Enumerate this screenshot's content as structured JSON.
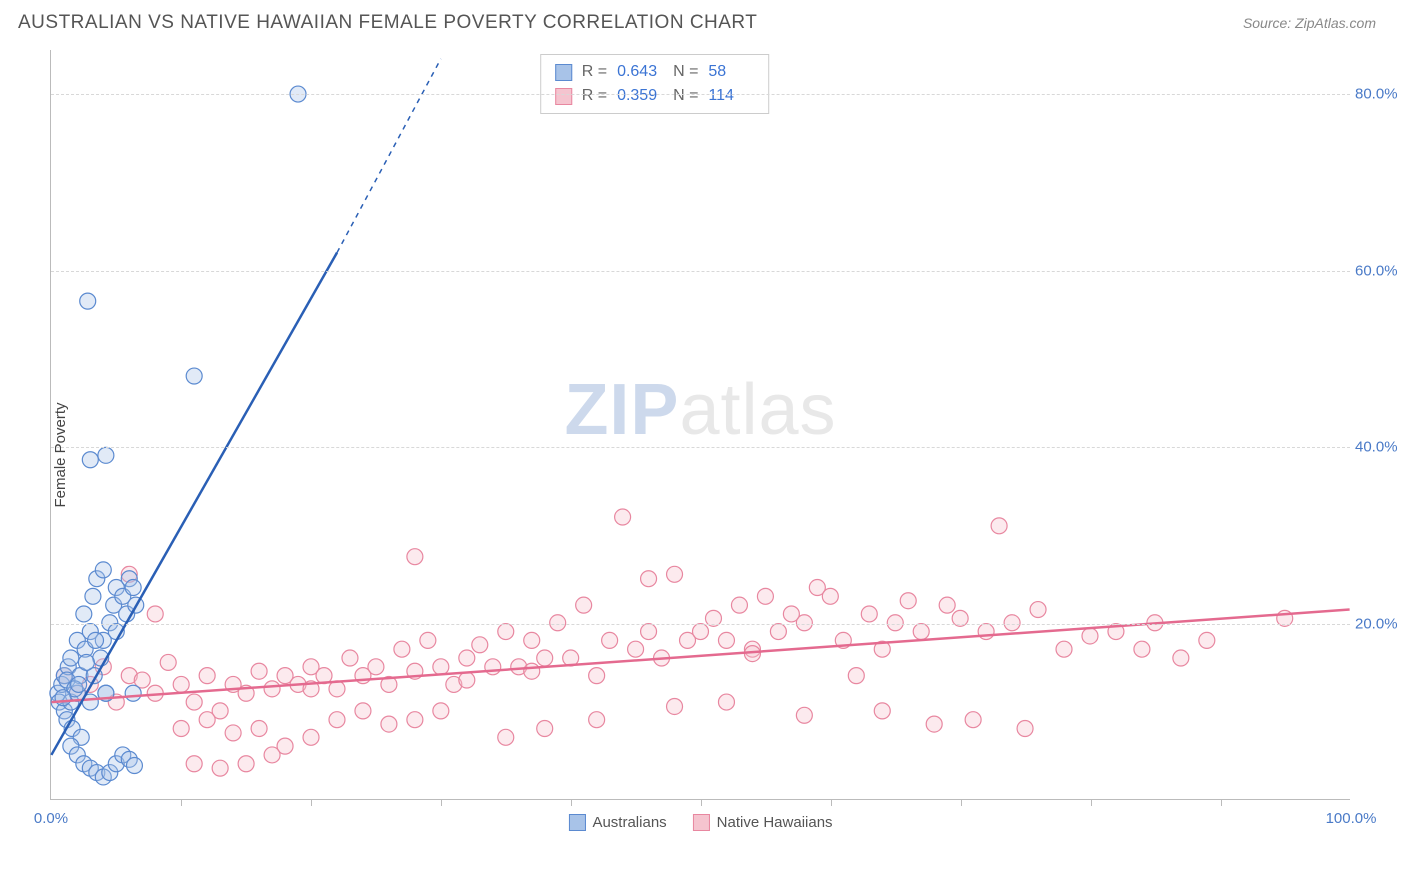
{
  "header": {
    "title": "AUSTRALIAN VS NATIVE HAWAIIAN FEMALE POVERTY CORRELATION CHART",
    "source_prefix": "Source: ",
    "source_name": "ZipAtlas.com"
  },
  "chart": {
    "type": "scatter",
    "ylabel": "Female Poverty",
    "watermark_a": "ZIP",
    "watermark_b": "atlas",
    "xlim": [
      0,
      100
    ],
    "ylim": [
      0,
      85
    ],
    "yticks": [
      {
        "v": 20,
        "label": "20.0%"
      },
      {
        "v": 40,
        "label": "40.0%"
      },
      {
        "v": 60,
        "label": "60.0%"
      },
      {
        "v": 80,
        "label": "80.0%"
      }
    ],
    "xticks_major": [
      {
        "v": 0,
        "label": "0.0%"
      },
      {
        "v": 100,
        "label": "100.0%"
      }
    ],
    "xticks_minor": [
      10,
      20,
      30,
      40,
      50,
      60,
      70,
      80,
      90
    ],
    "grid_color": "#d8d8d8",
    "axis_color": "#bbbbbb",
    "label_color": "#4a7ac7",
    "marker_radius": 8,
    "marker_opacity": 0.35,
    "series": [
      {
        "key": "australians",
        "label": "Australians",
        "color_fill": "#a8c3e8",
        "color_stroke": "#5b8ad0",
        "line_color": "#2a5fb5",
        "R": "0.643",
        "N": "58",
        "regression": {
          "x1": 0,
          "y1": 5,
          "x2": 22,
          "y2": 62,
          "dash_from_x": 22,
          "dash_to_x": 30,
          "dash_to_y": 84
        },
        "points": [
          [
            0.5,
            12
          ],
          [
            0.6,
            11
          ],
          [
            0.8,
            13
          ],
          [
            1,
            14
          ],
          [
            1,
            10
          ],
          [
            1.2,
            9
          ],
          [
            1.3,
            15
          ],
          [
            1.5,
            16
          ],
          [
            1.5,
            11
          ],
          [
            1.6,
            8
          ],
          [
            2,
            12
          ],
          [
            2,
            18
          ],
          [
            2.2,
            14
          ],
          [
            2.3,
            7
          ],
          [
            2.5,
            21
          ],
          [
            2.6,
            17
          ],
          [
            3,
            19
          ],
          [
            3,
            11
          ],
          [
            3.2,
            23
          ],
          [
            3.3,
            14
          ],
          [
            3.5,
            25
          ],
          [
            3.8,
            16
          ],
          [
            4,
            18
          ],
          [
            4,
            26
          ],
          [
            4.2,
            12
          ],
          [
            4.5,
            20
          ],
          [
            4.8,
            22
          ],
          [
            5,
            19
          ],
          [
            5,
            24
          ],
          [
            5.5,
            23
          ],
          [
            5.8,
            21
          ],
          [
            6,
            25
          ],
          [
            6.3,
            24
          ],
          [
            6.5,
            22
          ],
          [
            1.5,
            6
          ],
          [
            2,
            5
          ],
          [
            2.5,
            4
          ],
          [
            3,
            3.5
          ],
          [
            3.5,
            3
          ],
          [
            4,
            2.5
          ],
          [
            4.5,
            3
          ],
          [
            5,
            4
          ],
          [
            5.5,
            5
          ],
          [
            6,
            4.5
          ],
          [
            6.4,
            3.8
          ],
          [
            2.8,
            56.5
          ],
          [
            3,
            38.5
          ],
          [
            4.2,
            39
          ],
          [
            4.2,
            12
          ],
          [
            6.3,
            12
          ],
          [
            11,
            48
          ],
          [
            19,
            80
          ],
          [
            1.2,
            13.5
          ],
          [
            1.8,
            12.5
          ],
          [
            0.9,
            11.5
          ],
          [
            2.1,
            13
          ],
          [
            2.7,
            15.5
          ],
          [
            3.4,
            18
          ]
        ]
      },
      {
        "key": "native_hawaiians",
        "label": "Native Hawaiians",
        "color_fill": "#f5c4cf",
        "color_stroke": "#e887a0",
        "line_color": "#e46a8f",
        "R": "0.359",
        "N": "114",
        "regression": {
          "x1": 0,
          "y1": 11,
          "x2": 100,
          "y2": 21.5
        },
        "points": [
          [
            1,
            14
          ],
          [
            2,
            12
          ],
          [
            3,
            13
          ],
          [
            4,
            15
          ],
          [
            5,
            11
          ],
          [
            6,
            14
          ],
          [
            7,
            13.5
          ],
          [
            8,
            12
          ],
          [
            9,
            15.5
          ],
          [
            10,
            13
          ],
          [
            11,
            11
          ],
          [
            12,
            14
          ],
          [
            13,
            10
          ],
          [
            14,
            13
          ],
          [
            15,
            12
          ],
          [
            16,
            14.5
          ],
          [
            6,
            25.5
          ],
          [
            8,
            21
          ],
          [
            10,
            8
          ],
          [
            12,
            9
          ],
          [
            14,
            7.5
          ],
          [
            16,
            8
          ],
          [
            18,
            6
          ],
          [
            20,
            7
          ],
          [
            22,
            9
          ],
          [
            24,
            10
          ],
          [
            26,
            8.5
          ],
          [
            28,
            9
          ],
          [
            30,
            10
          ],
          [
            17,
            12.5
          ],
          [
            18,
            14
          ],
          [
            19,
            13
          ],
          [
            20,
            15
          ],
          [
            21,
            14
          ],
          [
            22,
            12.5
          ],
          [
            23,
            16
          ],
          [
            24,
            14
          ],
          [
            25,
            15
          ],
          [
            26,
            13
          ],
          [
            27,
            17
          ],
          [
            28,
            14.5
          ],
          [
            29,
            18
          ],
          [
            30,
            15
          ],
          [
            31,
            13
          ],
          [
            32,
            16
          ],
          [
            33,
            17.5
          ],
          [
            34,
            15
          ],
          [
            35,
            19
          ],
          [
            36,
            15
          ],
          [
            37,
            18
          ],
          [
            38,
            16
          ],
          [
            39,
            20
          ],
          [
            40,
            16
          ],
          [
            41,
            22
          ],
          [
            42,
            14
          ],
          [
            43,
            18
          ],
          [
            44,
            32
          ],
          [
            45,
            17
          ],
          [
            46,
            19
          ],
          [
            47,
            16
          ],
          [
            48,
            25.5
          ],
          [
            49,
            18
          ],
          [
            50,
            19
          ],
          [
            51,
            20.5
          ],
          [
            52,
            18
          ],
          [
            53,
            22
          ],
          [
            54,
            17
          ],
          [
            55,
            23
          ],
          [
            56,
            19
          ],
          [
            57,
            21
          ],
          [
            58,
            20
          ],
          [
            59,
            24
          ],
          [
            60,
            23
          ],
          [
            61,
            18
          ],
          [
            62,
            14
          ],
          [
            63,
            21
          ],
          [
            64,
            17
          ],
          [
            65,
            20
          ],
          [
            66,
            22.5
          ],
          [
            67,
            19
          ],
          [
            68,
            8.5
          ],
          [
            69,
            22
          ],
          [
            70,
            20.5
          ],
          [
            71,
            9
          ],
          [
            72,
            19
          ],
          [
            73,
            31
          ],
          [
            74,
            20
          ],
          [
            75,
            8
          ],
          [
            76,
            21.5
          ],
          [
            78,
            17
          ],
          [
            80,
            18.5
          ],
          [
            82,
            19
          ],
          [
            84,
            17
          ],
          [
            85,
            20
          ],
          [
            87,
            16
          ],
          [
            89,
            18
          ],
          [
            28,
            27.5
          ],
          [
            15,
            4
          ],
          [
            17,
            5
          ],
          [
            13,
            3.5
          ],
          [
            11,
            4
          ],
          [
            58,
            9.5
          ],
          [
            64,
            10
          ],
          [
            48,
            10.5
          ],
          [
            52,
            11
          ],
          [
            38,
            8
          ],
          [
            42,
            9
          ],
          [
            35,
            7
          ],
          [
            95,
            20.5
          ],
          [
            46,
            25
          ],
          [
            20,
            12.5
          ],
          [
            32,
            13.5
          ],
          [
            37,
            14.5
          ],
          [
            54,
            16.5
          ]
        ]
      }
    ]
  },
  "legend_top": {
    "r_label": "R =",
    "n_label": "N ="
  }
}
